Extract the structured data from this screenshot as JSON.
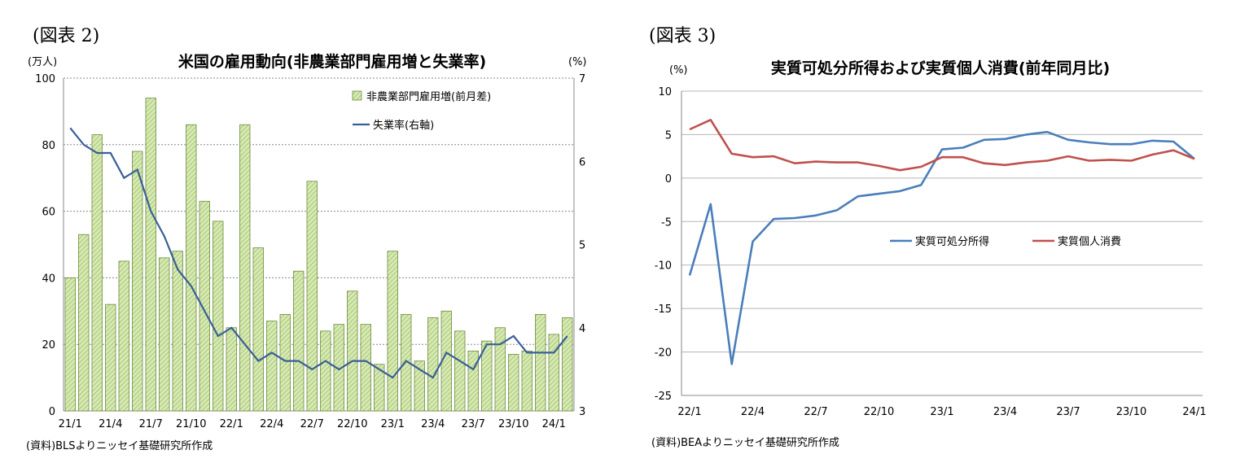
{
  "figures": [
    {
      "label": "(図表 2)",
      "source": "(資料)BLSよりニッセイ基礎研究所作成"
    },
    {
      "label": "(図表 3)",
      "source": "(資料)BEAよりニッセイ基礎研究所作成"
    }
  ],
  "chart_data": [
    {
      "type": "bar+line",
      "title": "米国の雇用動向(非農業部門雇用増と失業率)",
      "left_unit": "(万人)",
      "right_unit": "(%)",
      "ylim_left": [
        0,
        100
      ],
      "ylim_right": [
        3,
        7
      ],
      "yticks_left": [
        "0",
        "20",
        "40",
        "60",
        "80",
        "100"
      ],
      "yticks_right": [
        "3",
        "4",
        "5",
        "6",
        "7"
      ],
      "grid": true,
      "legend_position": "top-right",
      "x_tick_labels": [
        "21/1",
        "21/4",
        "21/7",
        "21/10",
        "22/1",
        "22/4",
        "22/7",
        "22/10",
        "23/1",
        "23/4",
        "23/7",
        "23/10",
        "24/1"
      ],
      "x_tick_every": 3,
      "series": [
        {
          "name": "非農業部門雇用増(前月差)",
          "kind": "bar",
          "axis": "left",
          "color": "#d6e9b2",
          "values": [
            40,
            53,
            83,
            32,
            45,
            78,
            94,
            46,
            48,
            86,
            63,
            57,
            25,
            86,
            49,
            27,
            29,
            42,
            69,
            24,
            26,
            36,
            26,
            14,
            48,
            29,
            15,
            28,
            30,
            24,
            18,
            21,
            25,
            17,
            18,
            29,
            23,
            28
          ]
        },
        {
          "name": "失業率(右軸)",
          "kind": "line",
          "axis": "right",
          "color": "#3a5f95",
          "values": [
            6.4,
            6.2,
            6.1,
            6.1,
            5.8,
            5.9,
            5.4,
            5.1,
            4.7,
            4.5,
            4.2,
            3.9,
            4.0,
            3.8,
            3.6,
            3.7,
            3.6,
            3.6,
            3.5,
            3.6,
            3.5,
            3.6,
            3.6,
            3.5,
            3.4,
            3.6,
            3.5,
            3.4,
            3.7,
            3.6,
            3.5,
            3.8,
            3.8,
            3.9,
            3.7,
            3.7,
            3.7,
            3.9
          ]
        }
      ]
    },
    {
      "type": "line",
      "title": "実質可処分所得および実質個人消費(前年同月比)",
      "y_unit": "(%)",
      "ylim": [
        -25,
        10
      ],
      "yticks": [
        "10",
        "5",
        "0",
        "-5",
        "-10",
        "-15",
        "-20",
        "-25"
      ],
      "grid": true,
      "legend_position": "center-right",
      "x_tick_labels": [
        "22/1",
        "22/4",
        "22/7",
        "22/10",
        "23/1",
        "23/4",
        "23/7",
        "23/10",
        "24/1"
      ],
      "x_tick_every": 3,
      "series": [
        {
          "name": "実質可処分所得",
          "color": "#4a7ebb",
          "values": [
            -11.2,
            -3.0,
            -21.4,
            -7.3,
            -4.7,
            -4.6,
            -4.3,
            -3.7,
            -2.1,
            -1.8,
            -1.5,
            -0.8,
            3.3,
            3.5,
            4.4,
            4.5,
            5.0,
            5.3,
            4.4,
            4.1,
            3.9,
            3.9,
            4.3,
            4.2,
            2.2
          ]
        },
        {
          "name": "実質個人消費",
          "color": "#c0504d",
          "values": [
            5.6,
            6.7,
            2.8,
            2.4,
            2.5,
            1.7,
            1.9,
            1.8,
            1.8,
            1.4,
            0.9,
            1.3,
            2.4,
            2.4,
            1.7,
            1.5,
            1.8,
            2.0,
            2.5,
            2.0,
            2.1,
            2.0,
            2.7,
            3.2,
            2.2
          ]
        }
      ]
    }
  ]
}
